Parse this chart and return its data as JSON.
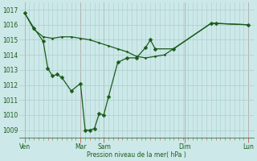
{
  "bg_color": "#cce8e8",
  "grid_color": "#aacece",
  "line_color": "#1a5c1a",
  "marker_color": "#1a5c1a",
  "xlabel": "Pression niveau de la mer( hPa )",
  "ylim": [
    1008.5,
    1017.5
  ],
  "yticks": [
    1009,
    1010,
    1011,
    1012,
    1013,
    1014,
    1015,
    1016,
    1017
  ],
  "day_positions": [
    0.0,
    0.5,
    0.71,
    1.43,
    2.0
  ],
  "day_labels": [
    "Ven",
    "Mar",
    "Sam",
    "Dim",
    "Lun"
  ],
  "line1_x": [
    0.0,
    0.083,
    0.167,
    0.25,
    0.333,
    0.417,
    0.5,
    0.583,
    0.667,
    0.75,
    0.833,
    0.917,
    1.0,
    1.083,
    1.167,
    1.25,
    1.667,
    2.0
  ],
  "line1_y": [
    1016.8,
    1015.7,
    1015.2,
    1015.1,
    1015.2,
    1015.2,
    1015.1,
    1015.0,
    1014.8,
    1014.6,
    1014.4,
    1014.2,
    1013.9,
    1013.8,
    1013.9,
    1014.0,
    1016.1,
    1016.0
  ],
  "line2_x": [
    0.0,
    0.083,
    0.167,
    0.208,
    0.25,
    0.292,
    0.333,
    0.417,
    0.5,
    0.542,
    0.583,
    0.625,
    0.667,
    0.708,
    0.75,
    0.833,
    0.917,
    1.0,
    1.083,
    1.125,
    1.167,
    1.333,
    1.667,
    1.708,
    2.0
  ],
  "line2_y": [
    1016.8,
    1015.8,
    1014.9,
    1013.1,
    1012.6,
    1012.7,
    1012.5,
    1011.6,
    1012.1,
    1009.0,
    1009.0,
    1009.1,
    1010.1,
    1010.0,
    1011.2,
    1013.5,
    1013.8,
    1013.8,
    1014.5,
    1015.0,
    1014.4,
    1014.4,
    1016.1,
    1016.1,
    1016.0
  ],
  "vline_positions": [
    0.0,
    0.5,
    0.71,
    1.43,
    2.0
  ],
  "vline_color": "#cc6666",
  "tick_color": "#cc6666",
  "xlim": [
    -0.05,
    2.05
  ]
}
